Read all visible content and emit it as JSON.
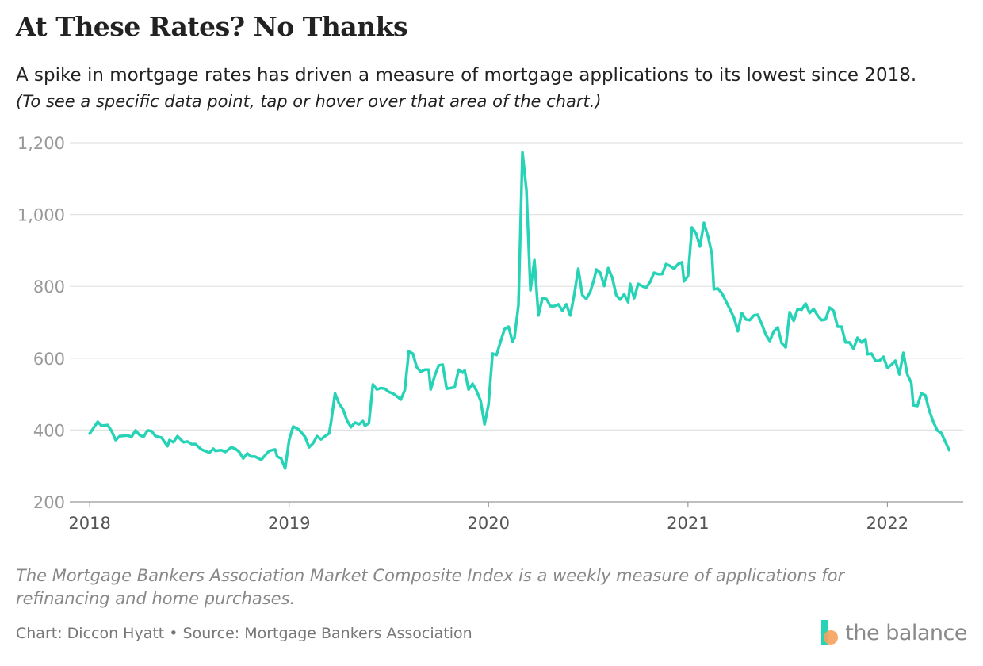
{
  "chart_data": {
    "type": "line",
    "title": "At These Rates? No Thanks",
    "subtitle": "A spike in mortgage rates has driven a measure of mortgage applications to its lowest since 2018.",
    "hint": "(To see a specific data point, tap or hover over that area of the chart.)",
    "note": "The Mortgage Bankers Association Market Composite Index is a weekly measure of applications for refinancing and home purchases.",
    "source": "Chart: Diccon Hyatt • Source: Mortgage Bankers Association",
    "logo": "the balance",
    "xlim": [
      2017.9,
      2022.38
    ],
    "xticks": [
      2018,
      2019,
      2020,
      2021,
      2022
    ],
    "ylim": [
      200,
      1200
    ],
    "yticks": [
      200,
      400,
      600,
      800,
      {
        "value": 1000,
        "label": "1,000"
      },
      {
        "value": 1200,
        "label": "1,200"
      }
    ],
    "grid": true,
    "x": [
      2018.0,
      2018.04,
      2018.06,
      2018.09,
      2018.11,
      2018.13,
      2018.15,
      2018.19,
      2018.21,
      2018.23,
      2018.25,
      2018.27,
      2018.29,
      2018.31,
      2018.33,
      2018.36,
      2018.39,
      2018.4,
      2018.42,
      2018.44,
      2018.47,
      2018.49,
      2018.51,
      2018.53,
      2018.56,
      2018.6,
      2018.62,
      2018.63,
      2018.66,
      2018.68,
      2018.71,
      2018.73,
      2018.75,
      2018.77,
      2018.79,
      2018.81,
      2018.83,
      2018.86,
      2018.88,
      2018.9,
      2018.93,
      2018.94,
      2018.96,
      2018.98,
      2019.0,
      2019.02,
      2019.05,
      2019.08,
      2019.1,
      2019.12,
      2019.14,
      2019.16,
      2019.18,
      2019.2,
      2019.21,
      2019.23,
      2019.25,
      2019.27,
      2019.29,
      2019.31,
      2019.33,
      2019.35,
      2019.37,
      2019.38,
      2019.4,
      2019.42,
      2019.44,
      2019.46,
      2019.48,
      2019.5,
      2019.52,
      2019.54,
      2019.56,
      2019.58,
      2019.6,
      2019.62,
      2019.64,
      2019.66,
      2019.68,
      2019.7,
      2019.71,
      2019.73,
      2019.75,
      2019.77,
      2019.79,
      2019.81,
      2019.83,
      2019.85,
      2019.87,
      2019.88,
      2019.9,
      2019.92,
      2019.94,
      2019.96,
      2019.98,
      2020.0,
      2020.02,
      2020.04,
      2020.06,
      2020.08,
      2020.1,
      2020.12,
      2020.13,
      2020.15,
      2020.17,
      2020.19,
      2020.21,
      2020.23,
      2020.25,
      2020.27,
      2020.29,
      2020.31,
      2020.33,
      2020.35,
      2020.37,
      2020.39,
      2020.41,
      2020.43,
      2020.45,
      2020.47,
      2020.49,
      2020.51,
      2020.53,
      2020.54,
      2020.56,
      2020.58,
      2020.6,
      2020.62,
      2020.64,
      2020.66,
      2020.68,
      2020.7,
      2020.71,
      2020.73,
      2020.75,
      2020.77,
      2020.79,
      2020.81,
      2020.83,
      2020.85,
      2020.87,
      2020.89,
      2020.91,
      2020.93,
      2020.95,
      2020.97,
      2020.98,
      2021.0,
      2021.02,
      2021.04,
      2021.06,
      2021.08,
      2021.1,
      2021.12,
      2021.13,
      2021.15,
      2021.17,
      2021.19,
      2021.21,
      2021.23,
      2021.25,
      2021.27,
      2021.29,
      2021.31,
      2021.33,
      2021.35,
      2021.37,
      2021.39,
      2021.41,
      2021.43,
      2021.45,
      2021.47,
      2021.49,
      2021.51,
      2021.53,
      2021.55,
      2021.57,
      2021.59,
      2021.61,
      2021.63,
      2021.65,
      2021.67,
      2021.69,
      2021.71,
      2021.73,
      2021.75,
      2021.77,
      2021.79,
      2021.81,
      2021.83,
      2021.85,
      2021.87,
      2021.89,
      2021.9,
      2021.92,
      2021.94,
      2021.96,
      2021.98,
      2022.0,
      2022.02,
      2022.04,
      2022.06,
      2022.08,
      2022.1,
      2022.12,
      2022.13,
      2022.15,
      2022.17,
      2022.19,
      2022.21,
      2022.23,
      2022.25,
      2022.27,
      2022.29,
      2022.31
    ],
    "series": [
      {
        "name": "Market Composite Index",
        "color": "#27d3b6",
        "values": [
          390,
          423,
          412,
          414,
          397,
          372,
          383,
          385,
          381,
          399,
          386,
          381,
          399,
          397,
          383,
          379,
          355,
          372,
          366,
          383,
          366,
          368,
          361,
          361,
          346,
          337,
          348,
          342,
          344,
          339,
          352,
          348,
          339,
          321,
          335,
          326,
          326,
          317,
          330,
          342,
          346,
          326,
          321,
          293,
          372,
          410,
          401,
          381,
          352,
          363,
          383,
          374,
          383,
          390,
          421,
          502,
          474,
          458,
          427,
          408,
          421,
          416,
          425,
          412,
          419,
          527,
          513,
          517,
          515,
          506,
          502,
          494,
          485,
          511,
          619,
          613,
          575,
          562,
          568,
          568,
          513,
          551,
          580,
          582,
          515,
          517,
          519,
          568,
          560,
          566,
          513,
          529,
          509,
          482,
          416,
          472,
          613,
          609,
          646,
          681,
          688,
          646,
          657,
          748,
          1173,
          1068,
          789,
          873,
          719,
          767,
          765,
          745,
          745,
          750,
          732,
          750,
          719,
          778,
          849,
          776,
          765,
          785,
          821,
          847,
          838,
          801,
          851,
          825,
          776,
          763,
          778,
          756,
          807,
          767,
          807,
          801,
          796,
          812,
          838,
          834,
          834,
          862,
          857,
          849,
          862,
          867,
          814,
          829,
          964,
          948,
          911,
          977,
          940,
          891,
          792,
          794,
          781,
          759,
          737,
          714,
          675,
          726,
          708,
          706,
          719,
          721,
          695,
          666,
          648,
          675,
          686,
          642,
          630,
          728,
          704,
          737,
          735,
          752,
          726,
          737,
          719,
          706,
          708,
          741,
          732,
          688,
          688,
          644,
          644,
          626,
          657,
          644,
          653,
          611,
          613,
          593,
          593,
          604,
          573,
          582,
          593,
          555,
          615,
          555,
          531,
          469,
          467,
          502,
          497,
          454,
          423,
          399,
          392,
          368,
          344
        ]
      }
    ]
  }
}
